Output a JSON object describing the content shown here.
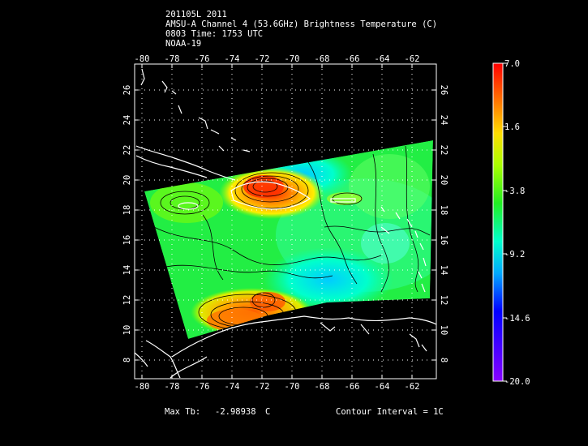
{
  "header": {
    "line1": "201105L 2011",
    "line2": "AMSU-A Channel 4 (53.6GHz) Brightness Temperature (C)",
    "line3": "0803 Time: 1753 UTC",
    "line4": "NOAA-19"
  },
  "map": {
    "lon_ticks": [
      "-80",
      "-78",
      "-76",
      "-74",
      "-72",
      "-70",
      "-68",
      "-66",
      "-64",
      "-62"
    ],
    "lat_ticks": [
      "8",
      "10",
      "12",
      "14",
      "16",
      "18",
      "20",
      "22",
      "24",
      "26"
    ]
  },
  "colorbar": {
    "labels": [
      "7.0",
      "1.6",
      "-3.8",
      "-9.2",
      "-14.6",
      "-20.0"
    ],
    "colors": [
      "#ff0000",
      "#ff9900",
      "#ffff00",
      "#00ff00",
      "#00ffcc",
      "#00aaff",
      "#0000ff",
      "#8800ff"
    ]
  },
  "footer": {
    "max_label": "Max Tb:",
    "max_value": "-2.98938",
    "max_unit": "C",
    "contour_label": "Contour Interval = 1C"
  }
}
